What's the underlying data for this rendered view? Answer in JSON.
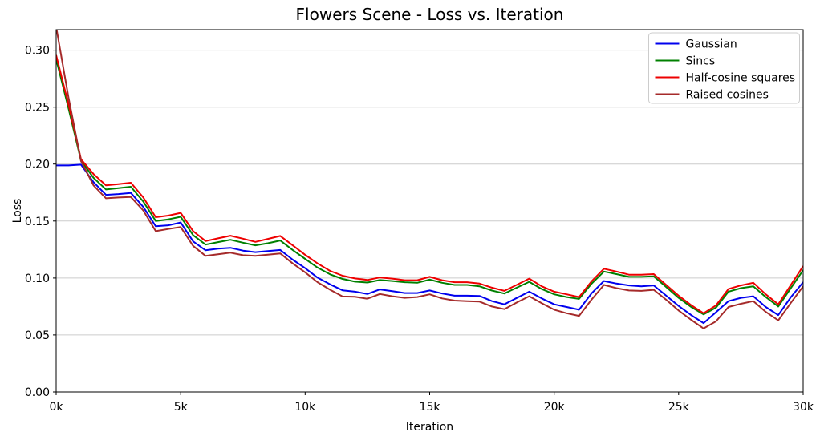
{
  "title": "Flowers Scene - Loss vs. Iteration",
  "axes": {
    "xlabel": "Iteration",
    "ylabel": "Loss",
    "x_ticks": [
      {
        "v": 0,
        "label": "0k"
      },
      {
        "v": 5000,
        "label": "5k"
      },
      {
        "v": 10000,
        "label": "10k"
      },
      {
        "v": 15000,
        "label": "15k"
      },
      {
        "v": 20000,
        "label": "20k"
      },
      {
        "v": 25000,
        "label": "25k"
      },
      {
        "v": 30000,
        "label": "30k"
      }
    ],
    "y_ticks": [
      {
        "v": 0.0,
        "label": "0.00"
      },
      {
        "v": 0.05,
        "label": "0.05"
      },
      {
        "v": 0.1,
        "label": "0.10"
      },
      {
        "v": 0.15,
        "label": "0.15"
      },
      {
        "v": 0.2,
        "label": "0.20"
      },
      {
        "v": 0.25,
        "label": "0.25"
      },
      {
        "v": 0.3,
        "label": "0.30"
      }
    ]
  },
  "colors": {
    "grid": "#cccccc",
    "spine": "#000000",
    "legend_border": "#cccccc",
    "background": "#ffffff"
  },
  "chart_data": {
    "type": "line",
    "title": "Flowers Scene - Loss vs. Iteration",
    "xlabel": "Iteration",
    "ylabel": "Loss",
    "xlim": [
      0,
      30000
    ],
    "ylim": [
      0,
      0.318
    ],
    "grid": "horizontal gridlines at 0.05 steps",
    "legend_position": "upper right",
    "x": [
      0,
      500,
      1000,
      1500,
      2000,
      2500,
      3000,
      3500,
      4000,
      4500,
      5000,
      5500,
      6000,
      6500,
      7000,
      7500,
      8000,
      8500,
      9000,
      9500,
      10000,
      10500,
      11000,
      11500,
      12000,
      12500,
      13000,
      13500,
      14000,
      14500,
      15000,
      15500,
      16000,
      16500,
      17000,
      17500,
      18000,
      18500,
      19000,
      19500,
      20000,
      20500,
      21000,
      21500,
      22000,
      22500,
      23000,
      23500,
      24000,
      24500,
      25000,
      25500,
      26000,
      26500,
      27000,
      27500,
      28000,
      28500,
      29000,
      29500,
      30000
    ],
    "series": [
      {
        "name": "Gaussian",
        "color": "#0000ee",
        "values": [
          0.1988,
          0.1988,
          0.1995,
          0.1841,
          0.173,
          0.1737,
          0.1747,
          0.1624,
          0.1454,
          0.1463,
          0.1487,
          0.1321,
          0.1243,
          0.1258,
          0.1265,
          0.124,
          0.1227,
          0.1237,
          0.1246,
          0.1161,
          0.1086,
          0.1003,
          0.0944,
          0.0892,
          0.088,
          0.086,
          0.09,
          0.0885,
          0.0868,
          0.0868,
          0.0891,
          0.0864,
          0.0845,
          0.0845,
          0.0843,
          0.0797,
          0.0769,
          0.0825,
          0.088,
          0.0821,
          0.0769,
          0.0746,
          0.0722,
          0.0865,
          0.0974,
          0.0951,
          0.0935,
          0.0927,
          0.0935,
          0.0845,
          0.0755,
          0.0675,
          0.0604,
          0.07,
          0.0797,
          0.0826,
          0.084,
          0.0746,
          0.0675,
          0.083,
          0.0963
        ]
      },
      {
        "name": "Sincs",
        "color": "#008000",
        "values": [
          0.2922,
          0.2486,
          0.203,
          0.1879,
          0.1777,
          0.1789,
          0.1801,
          0.1671,
          0.1501,
          0.1515,
          0.1537,
          0.1376,
          0.1293,
          0.1315,
          0.1335,
          0.131,
          0.1287,
          0.1305,
          0.1329,
          0.1246,
          0.1168,
          0.1091,
          0.1032,
          0.0992,
          0.0968,
          0.096,
          0.0982,
          0.0974,
          0.0963,
          0.0958,
          0.0986,
          0.0958,
          0.0939,
          0.0939,
          0.0927,
          0.089,
          0.0864,
          0.0915,
          0.0967,
          0.0903,
          0.0857,
          0.0833,
          0.0817,
          0.095,
          0.1057,
          0.1034,
          0.101,
          0.101,
          0.1015,
          0.0921,
          0.0826,
          0.0746,
          0.068,
          0.074,
          0.088,
          0.0911,
          0.0927,
          0.0833,
          0.075,
          0.091,
          0.1069
        ]
      },
      {
        "name": "Half-cosine squares",
        "color": "#ee0000",
        "values": [
          0.2957,
          0.2521,
          0.2042,
          0.1912,
          0.1813,
          0.1824,
          0.1836,
          0.1707,
          0.1534,
          0.1548,
          0.1572,
          0.1411,
          0.1324,
          0.1348,
          0.1371,
          0.1345,
          0.1317,
          0.1343,
          0.1369,
          0.1287,
          0.1204,
          0.1128,
          0.1062,
          0.102,
          0.0996,
          0.0983,
          0.1005,
          0.0995,
          0.0981,
          0.0981,
          0.101,
          0.0981,
          0.0963,
          0.0963,
          0.0951,
          0.0915,
          0.0887,
          0.094,
          0.0995,
          0.0927,
          0.088,
          0.0857,
          0.0833,
          0.097,
          0.1081,
          0.1057,
          0.1029,
          0.1029,
          0.1034,
          0.0939,
          0.0845,
          0.0762,
          0.0691,
          0.076,
          0.0903,
          0.0935,
          0.0958,
          0.0857,
          0.0769,
          0.0937,
          0.1104
        ]
      },
      {
        "name": "Raised cosines",
        "color": "#a52a2a",
        "values": [
          0.3205,
          0.258,
          0.2026,
          0.1813,
          0.17,
          0.1707,
          0.1711,
          0.1593,
          0.1411,
          0.143,
          0.1447,
          0.1282,
          0.1194,
          0.1208,
          0.1222,
          0.12,
          0.1194,
          0.1205,
          0.1216,
          0.1128,
          0.105,
          0.0963,
          0.0897,
          0.0838,
          0.0835,
          0.0818,
          0.086,
          0.084,
          0.0826,
          0.0833,
          0.0857,
          0.0821,
          0.0802,
          0.0797,
          0.0793,
          0.075,
          0.0727,
          0.0785,
          0.084,
          0.0779,
          0.0722,
          0.0691,
          0.0668,
          0.081,
          0.0939,
          0.0911,
          0.0891,
          0.0887,
          0.0896,
          0.0809,
          0.0715,
          0.0633,
          0.0557,
          0.062,
          0.0746,
          0.0774,
          0.0797,
          0.0703,
          0.0628,
          0.078,
          0.0927
        ]
      }
    ]
  }
}
